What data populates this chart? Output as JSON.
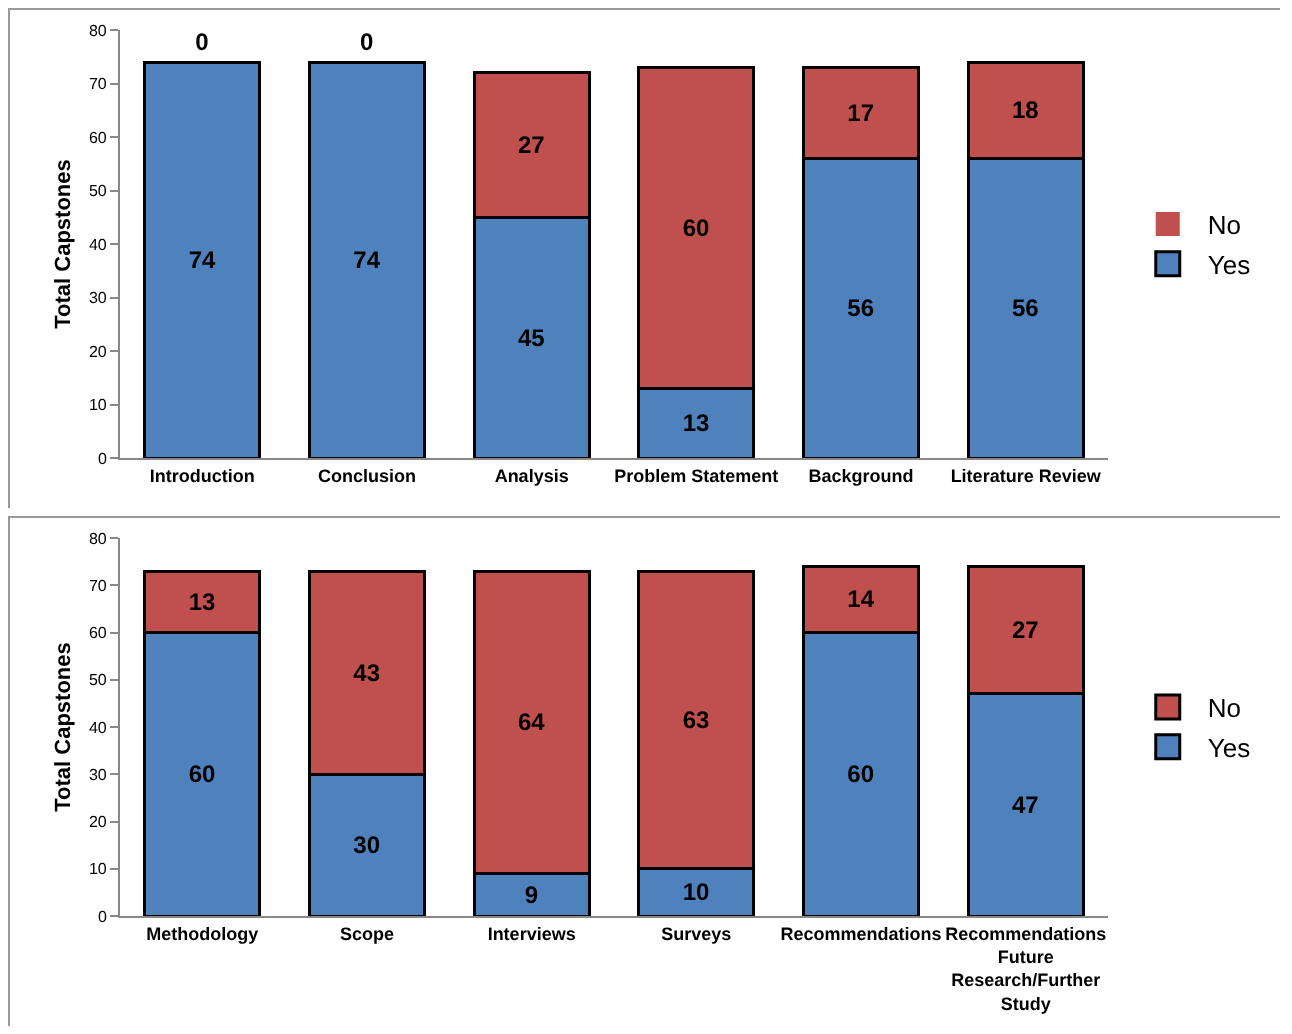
{
  "chart_data": [
    {
      "type": "bar",
      "stacked": true,
      "ylabel": "Total Capstones",
      "categories": [
        "Introduction",
        "Conclusion",
        "Analysis",
        "Problem Statement",
        "Background",
        "Literature Review"
      ],
      "series": [
        {
          "name": "Yes",
          "color": "#4f81bd",
          "values": [
            74,
            74,
            45,
            13,
            56,
            56
          ]
        },
        {
          "name": "No",
          "color": "#c0504d",
          "values": [
            0,
            0,
            27,
            60,
            17,
            18
          ]
        }
      ],
      "ylim": [
        0,
        80
      ],
      "yticks": [
        0,
        10,
        20,
        30,
        40,
        50,
        60,
        70,
        80
      ],
      "data_labels": true,
      "legend": "right",
      "grid": false
    },
    {
      "type": "bar",
      "stacked": true,
      "ylabel": "Total Capstones",
      "categories": [
        "Methodology",
        "Scope",
        "Interviews",
        "Surveys",
        "Recommendations",
        "Recommendations Future Research/Further Study"
      ],
      "series": [
        {
          "name": "Yes",
          "color": "#4f81bd",
          "values": [
            60,
            30,
            9,
            10,
            60,
            47
          ]
        },
        {
          "name": "No",
          "color": "#c0504d",
          "values": [
            13,
            43,
            64,
            63,
            14,
            27
          ]
        }
      ],
      "ylim": [
        0,
        80
      ],
      "yticks": [
        0,
        10,
        20,
        30,
        40,
        50,
        60,
        70,
        80
      ],
      "data_labels": true,
      "legend": "right",
      "grid": false
    }
  ]
}
